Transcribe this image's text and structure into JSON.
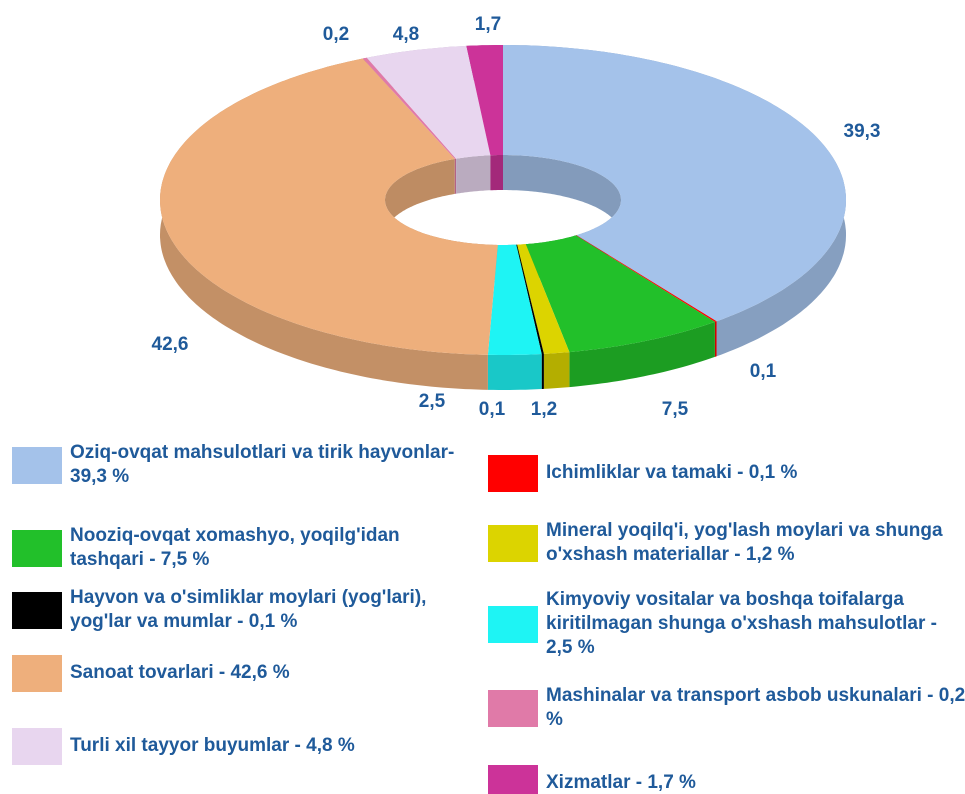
{
  "chart_data": {
    "type": "pie",
    "categories": [
      "Oziq-ovqat mahsulotlari va tirik hayvonlar- 39,3 %",
      "Ichimliklar va tamaki - 0,1 %",
      "Nooziq-ovqat xomashyo, yoqilg'idan tashqari - 7,5 %",
      "Mineral yoqilq'i, yog'lash moylari va shunga o'xshash materiallar - 1,2 %",
      "Hayvon va o'simliklar moylari (yog'lari), yog'lar va mumlar - 0,1 %",
      "Kimyoviy vositalar va boshqa toifalarga kiritilmagan shunga o'xshash mahsulotlar  - 2,5 %",
      "Sanoat tovarlari - 42,6 %",
      "Mashinalar va transport asbob uskunalari - 0,2 %",
      "Turli xil tayyor buyumlar  - 4,8 %",
      "Xizmatlar - 1,7 %"
    ],
    "values": [
      39.3,
      0.1,
      7.5,
      1.2,
      0.1,
      2.5,
      42.6,
      0.2,
      4.8,
      1.7
    ],
    "value_labels": [
      "39,3",
      "0,1",
      "7,5",
      "1,2",
      "0,1",
      "2,5",
      "42,6",
      "0,2",
      "4,8",
      "1,7"
    ],
    "colors": [
      "#a4c2ea",
      "#ff0000",
      "#22c02a",
      "#dcd400",
      "#000000",
      "#1ef4f4",
      "#eeaf7c",
      "#e07aa8",
      "#e8d6ef",
      "#cc3399"
    ],
    "donut": true
  }
}
